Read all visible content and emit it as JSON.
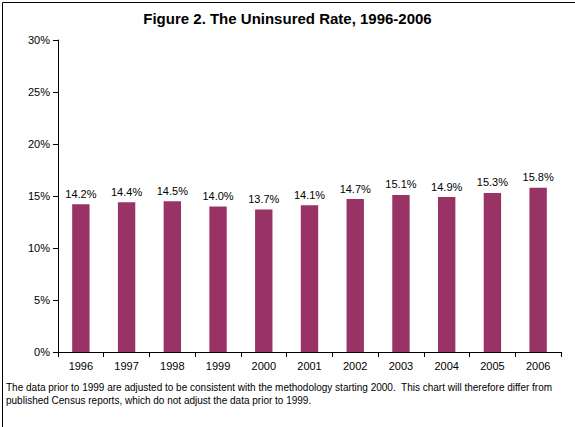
{
  "chart_data": {
    "type": "bar",
    "title": "Figure 2. The Uninsured Rate, 1996-2006",
    "categories": [
      "1996",
      "1997",
      "1998",
      "1999",
      "2000",
      "2001",
      "2002",
      "2003",
      "2004",
      "2005",
      "2006"
    ],
    "values": [
      14.2,
      14.4,
      14.5,
      14.0,
      13.7,
      14.1,
      14.7,
      15.1,
      14.9,
      15.3,
      15.8
    ],
    "value_labels": [
      "14.2%",
      "14.4%",
      "14.5%",
      "14.0%",
      "13.7%",
      "14.1%",
      "14.7%",
      "15.1%",
      "14.9%",
      "15.3%",
      "15.8%"
    ],
    "color": "#993366",
    "ylim": [
      0,
      30
    ],
    "yticks": [
      {
        "value": 0,
        "label": "0%"
      },
      {
        "value": 5,
        "label": "5%"
      },
      {
        "value": 10,
        "label": "10%"
      },
      {
        "value": 15,
        "label": "15%"
      },
      {
        "value": 20,
        "label": "20%"
      },
      {
        "value": 25,
        "label": "25%"
      },
      {
        "value": 30,
        "label": "30%"
      }
    ],
    "grid": false,
    "data_labels": true,
    "annotation": "The data prior to 1999 are adjusted to be consistent with the methodology starting 2000.  This chart will therefore differ from published Census reports, which do not adjust the data prior to 1999."
  }
}
